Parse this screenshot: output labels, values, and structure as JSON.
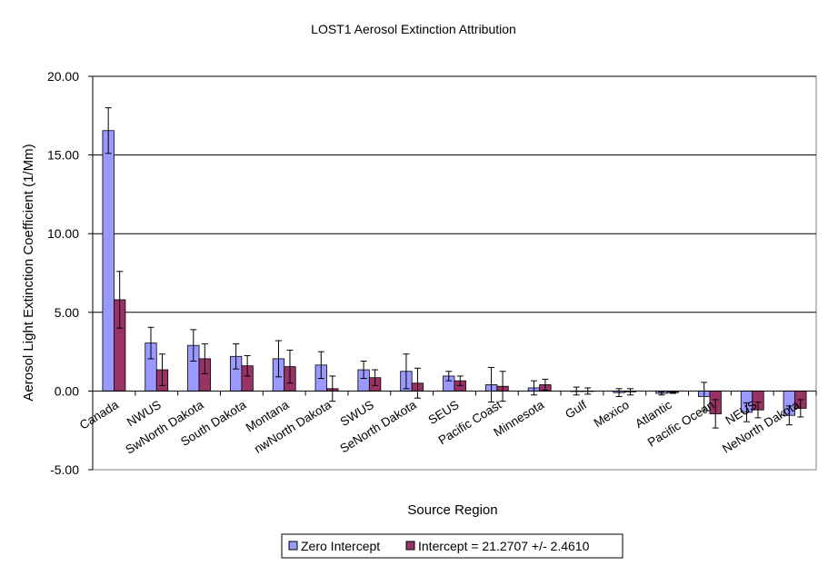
{
  "chart_data": {
    "type": "bar",
    "title": "LOST1 Aerosol Extinction Attribution",
    "xlabel": "Source Region",
    "ylabel": "Aerosol Light Extinction Coefficient (1/Mm)",
    "ylim": [
      -5,
      20
    ],
    "yticks": [
      20,
      15,
      10,
      5,
      0,
      -5
    ],
    "ytick_labels": [
      "20.00",
      "15.00",
      "10.00",
      "5.00",
      "0.00",
      "-5.00"
    ],
    "grid": "horizontal",
    "legend_position": "bottom-center",
    "categories": [
      "Canada",
      "NWUS",
      "SwNorth Dakota",
      "South Dakota",
      "Montana",
      "nwNorth Dakota",
      "SWUS",
      "SeNorth Dakota",
      "SEUS",
      "Pacific Coast",
      "Minnesota",
      "Gulf",
      "Mexico",
      "Atlantic",
      "Pacific Ocean",
      "NEUS",
      "NeNorth Dakota"
    ],
    "series": [
      {
        "name": "Zero Intercept",
        "color": "#9999ff",
        "values": [
          16.55,
          3.05,
          2.9,
          2.2,
          2.05,
          1.65,
          1.35,
          1.25,
          0.95,
          0.4,
          0.2,
          0.0,
          -0.1,
          -0.15,
          -0.35,
          -1.35,
          -1.55
        ],
        "errors": [
          1.45,
          1.0,
          1.0,
          0.8,
          1.15,
          0.85,
          0.55,
          1.1,
          0.3,
          1.1,
          0.45,
          0.25,
          0.25,
          0.1,
          0.9,
          0.6,
          0.6
        ]
      },
      {
        "name": "Intercept = 21.2707 +/- 2.4610",
        "color": "#993366",
        "values": [
          5.8,
          1.35,
          2.05,
          1.6,
          1.55,
          0.15,
          0.85,
          0.5,
          0.65,
          0.3,
          0.4,
          0.0,
          -0.05,
          -0.1,
          -1.45,
          -1.2,
          -1.1
        ],
        "errors": [
          1.8,
          1.0,
          0.95,
          0.65,
          1.05,
          0.8,
          0.5,
          0.95,
          0.3,
          0.95,
          0.35,
          0.2,
          0.2,
          0.05,
          0.9,
          0.5,
          0.55
        ]
      }
    ]
  }
}
